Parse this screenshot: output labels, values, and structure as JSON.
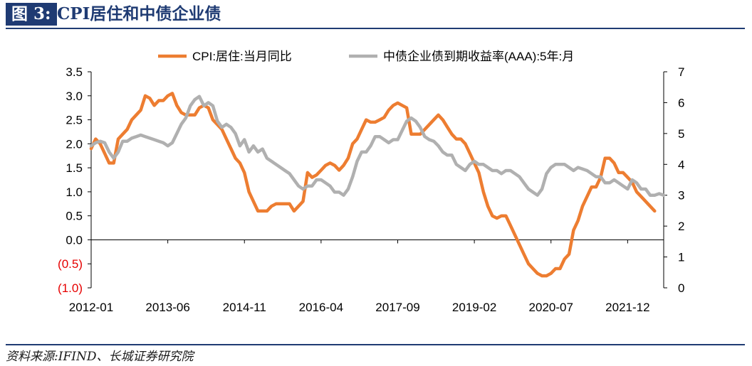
{
  "figure": {
    "label": "图 3:",
    "title": "CPI居住和中债企业债"
  },
  "source": "资料来源:IFIND、长城证券研究院",
  "colors": {
    "title_bg": "#1f3b73",
    "series_cpi": "#ed7d31",
    "series_bond": "#b0b0b0",
    "negative_tick": "#e60000"
  },
  "chart_data": {
    "type": "line",
    "title": "",
    "xlabel": "",
    "ylabel": "",
    "dual_axis": true,
    "x_tick_labels": [
      "2012-01",
      "2013-06",
      "2014-11",
      "2016-04",
      "2017-09",
      "2019-02",
      "2020-07",
      "2021-12"
    ],
    "x_range": [
      "2012-01",
      "2022-08"
    ],
    "y_left": {
      "lim": [
        -1.0,
        3.5
      ],
      "ticks": [
        "(1.0)",
        "(0.5)",
        "0.0",
        "0.5",
        "1.0",
        "1.5",
        "2.0",
        "2.5",
        "3.0",
        "3.5"
      ]
    },
    "y_right": {
      "lim": [
        0,
        7
      ],
      "ticks": [
        "0",
        "1",
        "2",
        "3",
        "4",
        "5",
        "6",
        "7"
      ]
    },
    "legend_position": "top",
    "series": [
      {
        "name": "CPI:居住:当月同比",
        "axis": "left",
        "color": "#ed7d31",
        "points": [
          [
            "2012-01",
            1.9
          ],
          [
            "2012-02",
            2.1
          ],
          [
            "2012-03",
            2.0
          ],
          [
            "2012-04",
            1.8
          ],
          [
            "2012-05",
            1.6
          ],
          [
            "2012-06",
            1.6
          ],
          [
            "2012-07",
            2.1
          ],
          [
            "2012-08",
            2.2
          ],
          [
            "2012-09",
            2.3
          ],
          [
            "2012-10",
            2.5
          ],
          [
            "2012-11",
            2.6
          ],
          [
            "2012-12",
            2.7
          ],
          [
            "2013-01",
            3.0
          ],
          [
            "2013-02",
            2.95
          ],
          [
            "2013-03",
            2.8
          ],
          [
            "2013-04",
            2.9
          ],
          [
            "2013-05",
            2.9
          ],
          [
            "2013-06",
            3.0
          ],
          [
            "2013-07",
            3.05
          ],
          [
            "2013-08",
            2.8
          ],
          [
            "2013-09",
            2.65
          ],
          [
            "2013-10",
            2.6
          ],
          [
            "2013-11",
            2.6
          ],
          [
            "2013-12",
            2.6
          ],
          [
            "2014-01",
            2.75
          ],
          [
            "2014-02",
            2.8
          ],
          [
            "2014-03",
            2.75
          ],
          [
            "2014-04",
            2.5
          ],
          [
            "2014-05",
            2.4
          ],
          [
            "2014-06",
            2.3
          ],
          [
            "2014-07",
            2.1
          ],
          [
            "2014-08",
            1.9
          ],
          [
            "2014-09",
            1.7
          ],
          [
            "2014-10",
            1.6
          ],
          [
            "2014-11",
            1.4
          ],
          [
            "2014-12",
            1.0
          ],
          [
            "2015-01",
            0.8
          ],
          [
            "2015-02",
            0.6
          ],
          [
            "2015-03",
            0.6
          ],
          [
            "2015-04",
            0.6
          ],
          [
            "2015-05",
            0.7
          ],
          [
            "2015-06",
            0.75
          ],
          [
            "2015-07",
            0.75
          ],
          [
            "2015-08",
            0.75
          ],
          [
            "2015-09",
            0.75
          ],
          [
            "2015-10",
            0.6
          ],
          [
            "2015-11",
            0.7
          ],
          [
            "2015-12",
            0.8
          ],
          [
            "2016-01",
            1.4
          ],
          [
            "2016-02",
            1.3
          ],
          [
            "2016-03",
            1.35
          ],
          [
            "2016-04",
            1.45
          ],
          [
            "2016-05",
            1.55
          ],
          [
            "2016-06",
            1.6
          ],
          [
            "2016-07",
            1.55
          ],
          [
            "2016-08",
            1.45
          ],
          [
            "2016-09",
            1.55
          ],
          [
            "2016-10",
            1.7
          ],
          [
            "2016-11",
            2.0
          ],
          [
            "2016-12",
            2.1
          ],
          [
            "2017-01",
            2.3
          ],
          [
            "2017-02",
            2.5
          ],
          [
            "2017-03",
            2.45
          ],
          [
            "2017-04",
            2.45
          ],
          [
            "2017-05",
            2.5
          ],
          [
            "2017-06",
            2.55
          ],
          [
            "2017-07",
            2.7
          ],
          [
            "2017-08",
            2.8
          ],
          [
            "2017-09",
            2.85
          ],
          [
            "2017-10",
            2.8
          ],
          [
            "2017-11",
            2.75
          ],
          [
            "2017-12",
            2.2
          ],
          [
            "2018-01",
            2.2
          ],
          [
            "2018-02",
            2.2
          ],
          [
            "2018-03",
            2.3
          ],
          [
            "2018-04",
            2.4
          ],
          [
            "2018-05",
            2.5
          ],
          [
            "2018-06",
            2.6
          ],
          [
            "2018-07",
            2.5
          ],
          [
            "2018-08",
            2.35
          ],
          [
            "2018-09",
            2.2
          ],
          [
            "2018-10",
            2.1
          ],
          [
            "2018-11",
            2.1
          ],
          [
            "2018-12",
            2.0
          ],
          [
            "2019-01",
            1.8
          ],
          [
            "2019-02",
            1.6
          ],
          [
            "2019-03",
            1.4
          ],
          [
            "2019-04",
            1.0
          ],
          [
            "2019-05",
            0.7
          ],
          [
            "2019-06",
            0.5
          ],
          [
            "2019-07",
            0.45
          ],
          [
            "2019-08",
            0.5
          ],
          [
            "2019-09",
            0.5
          ],
          [
            "2019-10",
            0.3
          ],
          [
            "2019-11",
            0.1
          ],
          [
            "2019-12",
            -0.1
          ],
          [
            "2020-01",
            -0.3
          ],
          [
            "2020-02",
            -0.5
          ],
          [
            "2020-03",
            -0.6
          ],
          [
            "2020-04",
            -0.7
          ],
          [
            "2020-05",
            -0.75
          ],
          [
            "2020-06",
            -0.75
          ],
          [
            "2020-07",
            -0.7
          ],
          [
            "2020-08",
            -0.6
          ],
          [
            "2020-09",
            -0.6
          ],
          [
            "2020-10",
            -0.4
          ],
          [
            "2020-11",
            -0.3
          ],
          [
            "2020-12",
            0.2
          ],
          [
            "2021-01",
            0.4
          ],
          [
            "2021-02",
            0.7
          ],
          [
            "2021-03",
            0.9
          ],
          [
            "2021-04",
            1.1
          ],
          [
            "2021-05",
            1.1
          ],
          [
            "2021-06",
            1.3
          ],
          [
            "2021-07",
            1.7
          ],
          [
            "2021-08",
            1.7
          ],
          [
            "2021-09",
            1.6
          ],
          [
            "2021-10",
            1.4
          ],
          [
            "2021-11",
            1.4
          ],
          [
            "2021-12",
            1.3
          ],
          [
            "2022-01",
            1.2
          ],
          [
            "2022-02",
            1.0
          ],
          [
            "2022-03",
            0.9
          ],
          [
            "2022-04",
            0.8
          ],
          [
            "2022-05",
            0.7
          ],
          [
            "2022-06",
            0.6
          ]
        ]
      },
      {
        "name": "中债企业债到期收益率(AAA):5年:月",
        "axis": "right",
        "color": "#b0b0b0",
        "points": [
          [
            "2012-01",
            4.6
          ],
          [
            "2012-02",
            4.7
          ],
          [
            "2012-03",
            4.75
          ],
          [
            "2012-04",
            4.7
          ],
          [
            "2012-05",
            4.4
          ],
          [
            "2012-06",
            4.2
          ],
          [
            "2012-07",
            4.4
          ],
          [
            "2012-08",
            4.75
          ],
          [
            "2012-09",
            4.75
          ],
          [
            "2012-10",
            4.85
          ],
          [
            "2012-11",
            4.9
          ],
          [
            "2012-12",
            4.95
          ],
          [
            "2013-01",
            4.9
          ],
          [
            "2013-02",
            4.85
          ],
          [
            "2013-03",
            4.8
          ],
          [
            "2013-04",
            4.75
          ],
          [
            "2013-05",
            4.7
          ],
          [
            "2013-06",
            4.6
          ],
          [
            "2013-07",
            4.7
          ],
          [
            "2013-08",
            5.0
          ],
          [
            "2013-09",
            5.3
          ],
          [
            "2013-10",
            5.5
          ],
          [
            "2013-11",
            5.9
          ],
          [
            "2013-12",
            6.1
          ],
          [
            "2014-01",
            6.2
          ],
          [
            "2014-02",
            5.9
          ],
          [
            "2014-03",
            6.0
          ],
          [
            "2014-04",
            5.9
          ],
          [
            "2014-05",
            5.4
          ],
          [
            "2014-06",
            5.2
          ],
          [
            "2014-07",
            5.3
          ],
          [
            "2014-08",
            5.2
          ],
          [
            "2014-09",
            5.0
          ],
          [
            "2014-10",
            4.6
          ],
          [
            "2014-11",
            4.8
          ],
          [
            "2014-12",
            4.4
          ],
          [
            "2015-01",
            4.6
          ],
          [
            "2015-02",
            4.4
          ],
          [
            "2015-03",
            4.5
          ],
          [
            "2015-04",
            4.2
          ],
          [
            "2015-05",
            4.1
          ],
          [
            "2015-06",
            4.0
          ],
          [
            "2015-07",
            3.9
          ],
          [
            "2015-08",
            3.8
          ],
          [
            "2015-09",
            3.7
          ],
          [
            "2015-10",
            3.5
          ],
          [
            "2015-11",
            3.3
          ],
          [
            "2015-12",
            3.2
          ],
          [
            "2016-01",
            3.3
          ],
          [
            "2016-02",
            3.3
          ],
          [
            "2016-03",
            3.5
          ],
          [
            "2016-04",
            3.5
          ],
          [
            "2016-05",
            3.4
          ],
          [
            "2016-06",
            3.3
          ],
          [
            "2016-07",
            3.1
          ],
          [
            "2016-08",
            3.1
          ],
          [
            "2016-09",
            3.0
          ],
          [
            "2016-10",
            3.2
          ],
          [
            "2016-11",
            3.6
          ],
          [
            "2016-12",
            4.1
          ],
          [
            "2017-01",
            4.4
          ],
          [
            "2017-02",
            4.4
          ],
          [
            "2017-03",
            4.6
          ],
          [
            "2017-04",
            4.9
          ],
          [
            "2017-05",
            4.9
          ],
          [
            "2017-06",
            4.8
          ],
          [
            "2017-07",
            4.7
          ],
          [
            "2017-08",
            4.8
          ],
          [
            "2017-09",
            4.8
          ],
          [
            "2017-10",
            5.1
          ],
          [
            "2017-11",
            5.4
          ],
          [
            "2017-12",
            5.5
          ],
          [
            "2018-01",
            5.4
          ],
          [
            "2018-02",
            5.2
          ],
          [
            "2018-03",
            4.9
          ],
          [
            "2018-04",
            4.8
          ],
          [
            "2018-05",
            4.75
          ],
          [
            "2018-06",
            4.6
          ],
          [
            "2018-07",
            4.4
          ],
          [
            "2018-08",
            4.3
          ],
          [
            "2018-09",
            4.3
          ],
          [
            "2018-10",
            4.0
          ],
          [
            "2018-11",
            3.9
          ],
          [
            "2018-12",
            3.8
          ],
          [
            "2019-01",
            4.0
          ],
          [
            "2019-02",
            4.1
          ],
          [
            "2019-03",
            4.0
          ],
          [
            "2019-04",
            4.0
          ],
          [
            "2019-05",
            3.9
          ],
          [
            "2019-06",
            3.8
          ],
          [
            "2019-07",
            3.8
          ],
          [
            "2019-08",
            3.7
          ],
          [
            "2019-09",
            3.8
          ],
          [
            "2019-10",
            3.8
          ],
          [
            "2019-11",
            3.7
          ],
          [
            "2019-12",
            3.6
          ],
          [
            "2020-01",
            3.4
          ],
          [
            "2020-02",
            3.2
          ],
          [
            "2020-03",
            3.1
          ],
          [
            "2020-04",
            3.0
          ],
          [
            "2020-05",
            3.2
          ],
          [
            "2020-06",
            3.7
          ],
          [
            "2020-07",
            3.9
          ],
          [
            "2020-08",
            4.0
          ],
          [
            "2020-09",
            4.0
          ],
          [
            "2020-10",
            4.0
          ],
          [
            "2020-11",
            3.9
          ],
          [
            "2020-12",
            3.8
          ],
          [
            "2021-01",
            3.9
          ],
          [
            "2021-02",
            3.85
          ],
          [
            "2021-03",
            3.8
          ],
          [
            "2021-04",
            3.7
          ],
          [
            "2021-05",
            3.6
          ],
          [
            "2021-06",
            3.6
          ],
          [
            "2021-07",
            3.4
          ],
          [
            "2021-08",
            3.4
          ],
          [
            "2021-09",
            3.5
          ],
          [
            "2021-10",
            3.4
          ],
          [
            "2021-11",
            3.3
          ],
          [
            "2021-12",
            3.2
          ],
          [
            "2022-01",
            3.5
          ],
          [
            "2022-02",
            3.4
          ],
          [
            "2022-03",
            3.2
          ],
          [
            "2022-04",
            3.2
          ],
          [
            "2022-05",
            3.0
          ],
          [
            "2022-06",
            3.0
          ],
          [
            "2022-07",
            3.05
          ],
          [
            "2022-08",
            3.0
          ]
        ]
      }
    ]
  }
}
